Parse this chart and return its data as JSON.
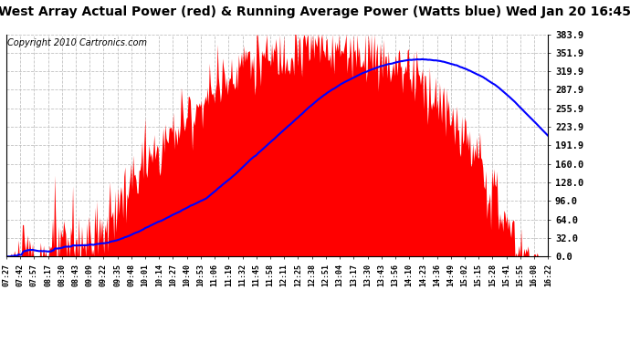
{
  "title": "West Array Actual Power (red) & Running Average Power (Watts blue) Wed Jan 20 16:45",
  "copyright": "Copyright 2010 Cartronics.com",
  "y_ticks": [
    0.0,
    32.0,
    64.0,
    96.0,
    128.0,
    160.0,
    191.9,
    223.9,
    255.9,
    287.9,
    319.9,
    351.9,
    383.9
  ],
  "y_max": 383.9,
  "y_min": 0.0,
  "x_labels": [
    "07:27",
    "07:42",
    "07:57",
    "08:17",
    "08:30",
    "08:43",
    "09:09",
    "09:22",
    "09:35",
    "09:48",
    "10:01",
    "10:14",
    "10:27",
    "10:40",
    "10:53",
    "11:06",
    "11:19",
    "11:32",
    "11:45",
    "11:58",
    "12:11",
    "12:25",
    "12:38",
    "12:51",
    "13:04",
    "13:17",
    "13:30",
    "13:43",
    "13:56",
    "14:10",
    "14:23",
    "14:36",
    "14:49",
    "15:02",
    "15:15",
    "15:28",
    "15:41",
    "15:55",
    "16:08",
    "16:22"
  ],
  "bar_color": "#FF0000",
  "line_color": "#0000FF",
  "bg_color": "#FFFFFF",
  "grid_color": "#BBBBBB",
  "title_fontsize": 10,
  "copyright_fontsize": 7
}
